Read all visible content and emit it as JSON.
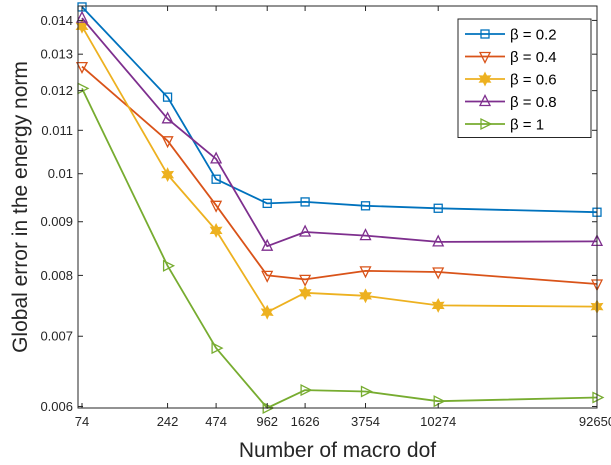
{
  "chart_data": {
    "type": "line",
    "xlabel": "Number of macro dof",
    "ylabel": "Global error in the energy norm",
    "x_scale": "log",
    "y_scale": "log",
    "xlim": [
      70,
      92650
    ],
    "ylim": [
      0.00598,
      0.01445
    ],
    "x": [
      74,
      242,
      474,
      962,
      1626,
      3754,
      10274,
      92650
    ],
    "x_tick_labels": [
      "74",
      "242",
      "474",
      "962",
      "1626",
      "3754",
      "10274",
      "92650"
    ],
    "y_ticks": [
      0.006,
      0.007,
      0.008,
      0.009,
      0.01,
      0.011,
      0.012,
      0.013,
      0.014
    ],
    "y_tick_labels": [
      "0.006",
      "0.007",
      "0.008",
      "0.009",
      "0.01",
      "0.011",
      "0.012",
      "0.013",
      "0.014"
    ],
    "grid": false,
    "legend_position": "top-right",
    "series": [
      {
        "name": "β = 0.2",
        "color": "#0072BD",
        "marker": "square",
        "values": [
          0.01442,
          0.01183,
          0.00988,
          0.00937,
          0.0094,
          0.00932,
          0.00927,
          0.00919
        ]
      },
      {
        "name": "β = 0.4",
        "color": "#D95319",
        "marker": "triangle-down",
        "values": [
          0.01265,
          0.01075,
          0.00933,
          0.008,
          0.00793,
          0.00808,
          0.00806,
          0.00785
        ]
      },
      {
        "name": "β = 0.6",
        "color": "#EDB120",
        "marker": "hexagram",
        "values": [
          0.01382,
          0.00998,
          0.00883,
          0.00738,
          0.0077,
          0.00765,
          0.00749,
          0.00747
        ]
      },
      {
        "name": "β = 0.8",
        "color": "#7E2F8E",
        "marker": "triangle-up",
        "values": [
          0.01407,
          0.01128,
          0.01033,
          0.00853,
          0.0088,
          0.00873,
          0.00861,
          0.00862
        ]
      },
      {
        "name": "β = 1",
        "color": "#77AC30",
        "marker": "triangle-right",
        "values": [
          0.01206,
          0.00817,
          0.00682,
          0.00598,
          0.00622,
          0.0062,
          0.00607,
          0.00612
        ]
      }
    ]
  }
}
